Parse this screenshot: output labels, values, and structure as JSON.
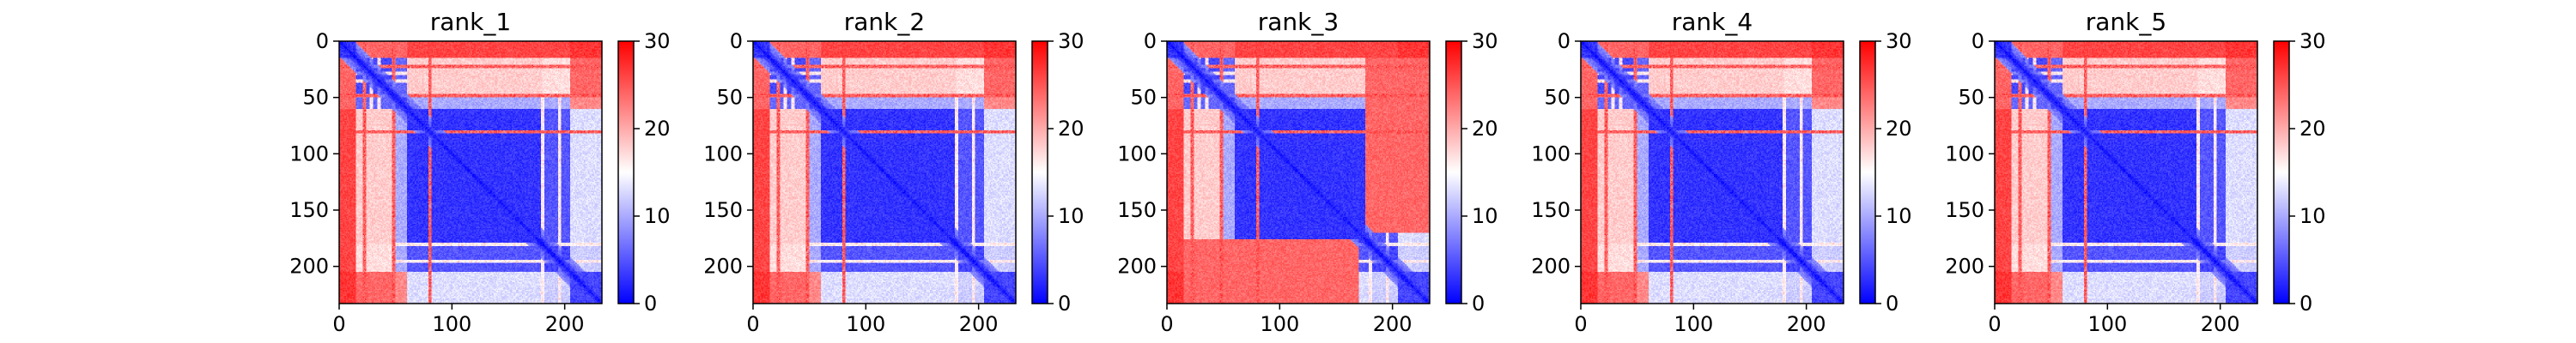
{
  "colorbar": {
    "colors": [
      "#0000ff",
      "#ffffff",
      "#ff0000"
    ],
    "ticks": [
      0,
      10,
      20,
      30
    ],
    "range": [
      0,
      30
    ]
  },
  "chart_data": [
    {
      "type": "heatmap",
      "title": "rank_1",
      "xticks": [
        0,
        100,
        200
      ],
      "yticks": [
        0,
        50,
        100,
        150,
        200
      ],
      "xlim": [
        0,
        233
      ],
      "ylim": [
        233,
        0
      ],
      "profile": "base",
      "matrix_size": 233,
      "value_range": [
        0,
        30
      ]
    },
    {
      "type": "heatmap",
      "title": "rank_2",
      "xticks": [
        0,
        100,
        200
      ],
      "yticks": [
        0,
        50,
        100,
        150,
        200
      ],
      "xlim": [
        0,
        233
      ],
      "ylim": [
        233,
        0
      ],
      "profile": "base",
      "matrix_size": 233,
      "value_range": [
        0,
        30
      ]
    },
    {
      "type": "heatmap",
      "title": "rank_3",
      "xticks": [
        0,
        100,
        200
      ],
      "yticks": [
        0,
        50,
        100,
        150,
        200
      ],
      "xlim": [
        0,
        233
      ],
      "ylim": [
        233,
        0
      ],
      "profile": "bottom-and-right-red",
      "matrix_size": 233,
      "value_range": [
        0,
        30
      ]
    },
    {
      "type": "heatmap",
      "title": "rank_4",
      "xticks": [
        0,
        100,
        200
      ],
      "yticks": [
        0,
        50,
        100,
        150,
        200
      ],
      "xlim": [
        0,
        233
      ],
      "ylim": [
        233,
        0
      ],
      "profile": "base",
      "matrix_size": 233,
      "value_range": [
        0,
        30
      ]
    },
    {
      "type": "heatmap",
      "title": "rank_5",
      "xticks": [
        0,
        100,
        200
      ],
      "yticks": [
        0,
        50,
        100,
        150,
        200
      ],
      "xlim": [
        0,
        233
      ],
      "ylim": [
        233,
        0
      ],
      "profile": "base",
      "matrix_size": 233,
      "value_range": [
        0,
        30
      ]
    }
  ]
}
